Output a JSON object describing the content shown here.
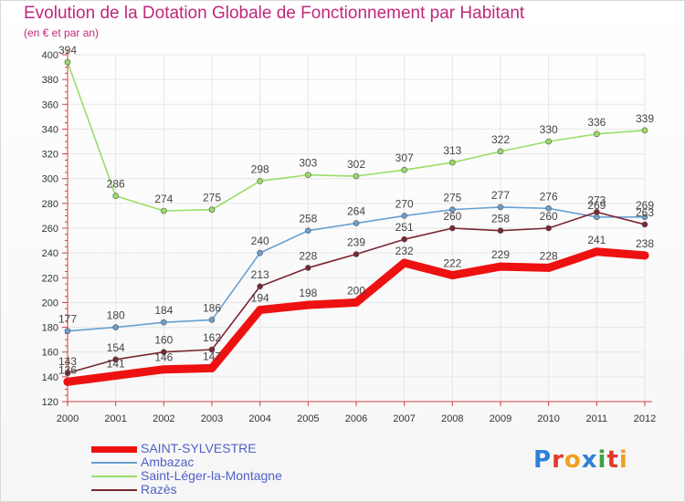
{
  "title": "Evolution de la Dotation Globale de Fonctionnement par Habitant",
  "subtitle": "(en € et par an)",
  "logo": "Proxiti",
  "chart_data": {
    "type": "line",
    "x": [
      "2000",
      "2001",
      "2002",
      "2003",
      "2004",
      "2005",
      "2006",
      "2007",
      "2008",
      "2009",
      "2010",
      "2011",
      "2012"
    ],
    "yticks": [
      120,
      140,
      160,
      180,
      200,
      220,
      240,
      260,
      280,
      300,
      320,
      340,
      360,
      380,
      400
    ],
    "ylim": [
      120,
      400
    ],
    "grid": true,
    "legend_position": "bottom-left",
    "series": [
      {
        "name": "SAINT-SYLVESTRE",
        "color": "#ee1111",
        "values": [
          136,
          141,
          146,
          147,
          194,
          198,
          200,
          232,
          222,
          229,
          228,
          241,
          238
        ],
        "labels": [
          "136",
          "141",
          "146",
          "147",
          "194",
          "198",
          "200",
          "232",
          "222",
          "229",
          "228",
          "241",
          "238"
        ]
      },
      {
        "name": "Ambazac",
        "color": "#6a9fd0",
        "values": [
          177,
          180,
          184,
          186,
          240,
          258,
          264,
          270,
          275,
          277,
          276,
          269,
          269
        ],
        "labels": [
          "177",
          "180",
          "184",
          "186",
          "240",
          "258",
          "264",
          "270",
          "275",
          "277",
          "276",
          "269",
          "269"
        ]
      },
      {
        "name": "Saint-Léger-la-Montagne",
        "color": "#99dd66",
        "values": [
          394,
          286,
          274,
          275,
          298,
          303,
          302,
          307,
          313,
          322,
          330,
          336,
          339
        ],
        "labels": [
          "394",
          "286",
          "274",
          "275",
          "298",
          "303",
          "302",
          "307",
          "313",
          "322",
          "330",
          "336",
          "339"
        ]
      },
      {
        "name": "Razès",
        "color": "#7a2630",
        "values": [
          143,
          154,
          160,
          162,
          213,
          228,
          239,
          251,
          260,
          258,
          260,
          273,
          263
        ],
        "labels": [
          "143",
          "154",
          "160",
          "162",
          "213",
          "228",
          "239",
          "251",
          "260",
          "258",
          "260",
          "273",
          "263"
        ]
      }
    ]
  }
}
